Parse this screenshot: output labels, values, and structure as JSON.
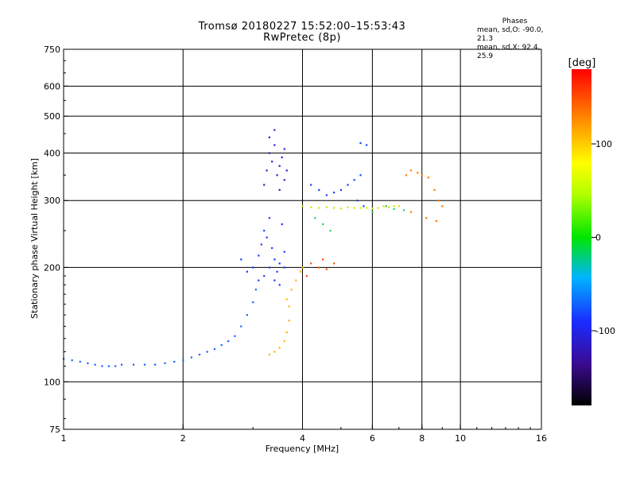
{
  "header": {
    "title_line1": "Tromsø 20180227 15:52:00–15:53:43",
    "title_line2": "RwPretec (8p)"
  },
  "phases_box": {
    "heading": "Phases",
    "line_o": "mean, sd,O: -90.0, 21.3",
    "line_x": "mean, sd,X:  92.4, 25.9"
  },
  "colorbar": {
    "unit": "[deg]",
    "ticks": [
      "100",
      "0",
      "-100"
    ]
  },
  "chart_data": {
    "type": "scatter",
    "xlabel": "Frequency [MHz]",
    "ylabel": "Stationary phase Virtual Height [km]",
    "x_scale": "log",
    "y_scale": "log",
    "xlim": [
      1,
      16
    ],
    "ylim": [
      75,
      750
    ],
    "x_ticks": [
      1,
      2,
      4,
      6,
      8,
      10,
      16
    ],
    "x_tick_labels": [
      "1",
      "2",
      "4",
      "6",
      "8",
      "10",
      "16"
    ],
    "y_ticks": [
      75,
      100,
      200,
      300,
      400,
      500,
      600,
      750
    ],
    "y_tick_labels": [
      "75",
      "100",
      "200",
      "300",
      "400",
      "500",
      "600",
      "750"
    ],
    "grid": true,
    "colorbar_range": [
      -180,
      180
    ],
    "traces": [
      {
        "color": "#1e64ff",
        "points": [
          [
            1.0,
            115
          ],
          [
            1.05,
            114
          ],
          [
            1.1,
            113
          ],
          [
            1.15,
            112
          ],
          [
            1.2,
            111
          ],
          [
            1.25,
            110
          ],
          [
            1.3,
            110
          ],
          [
            1.35,
            110
          ],
          [
            1.4,
            111
          ],
          [
            1.5,
            111
          ],
          [
            1.6,
            111
          ],
          [
            1.7,
            111
          ],
          [
            1.8,
            112
          ],
          [
            1.9,
            113
          ],
          [
            2.0,
            114
          ],
          [
            2.1,
            116
          ],
          [
            2.2,
            118
          ],
          [
            2.3,
            120
          ],
          [
            2.4,
            122
          ],
          [
            2.5,
            125
          ],
          [
            2.6,
            128
          ],
          [
            2.7,
            132
          ],
          [
            2.8,
            140
          ],
          [
            2.9,
            150
          ],
          [
            3.0,
            162
          ],
          [
            3.05,
            175
          ]
        ]
      },
      {
        "color": "#1a3cff",
        "points": [
          [
            3.0,
            200
          ],
          [
            3.1,
            215
          ],
          [
            3.15,
            230
          ],
          [
            3.2,
            250
          ],
          [
            3.25,
            240
          ],
          [
            3.3,
            270
          ],
          [
            3.35,
            225
          ],
          [
            3.4,
            210
          ],
          [
            3.45,
            195
          ],
          [
            3.5,
            205
          ],
          [
            3.55,
            260
          ],
          [
            3.6,
            220
          ],
          [
            3.1,
            185
          ],
          [
            3.2,
            190
          ],
          [
            3.3,
            200
          ],
          [
            3.4,
            185
          ],
          [
            3.5,
            180
          ],
          [
            2.9,
            195
          ],
          [
            2.8,
            210
          ],
          [
            3.6,
            200
          ]
        ]
      },
      {
        "color": "#2a1fcc",
        "points": [
          [
            3.2,
            330
          ],
          [
            3.25,
            360
          ],
          [
            3.3,
            400
          ],
          [
            3.35,
            380
          ],
          [
            3.4,
            420
          ],
          [
            3.45,
            350
          ],
          [
            3.5,
            370
          ],
          [
            3.55,
            390
          ],
          [
            3.6,
            410
          ],
          [
            3.3,
            440
          ],
          [
            3.4,
            460
          ],
          [
            3.5,
            320
          ],
          [
            3.6,
            340
          ],
          [
            3.65,
            360
          ]
        ]
      },
      {
        "color": "#ffb400",
        "points": [
          [
            3.3,
            118
          ],
          [
            3.4,
            120
          ],
          [
            3.5,
            123
          ],
          [
            3.6,
            128
          ],
          [
            3.65,
            135
          ],
          [
            3.7,
            145
          ],
          [
            3.7,
            158
          ],
          [
            3.65,
            165
          ],
          [
            3.75,
            175
          ],
          [
            3.85,
            185
          ],
          [
            3.95,
            195
          ],
          [
            4.0,
            200
          ]
        ]
      },
      {
        "color": "#d4e600",
        "points": [
          [
            4.0,
            290
          ],
          [
            4.2,
            288
          ],
          [
            4.4,
            287
          ],
          [
            4.6,
            288
          ],
          [
            4.8,
            287
          ],
          [
            5.0,
            286
          ],
          [
            5.2,
            288
          ],
          [
            5.4,
            287
          ],
          [
            5.6,
            287
          ],
          [
            5.8,
            287
          ],
          [
            6.0,
            286
          ],
          [
            6.2,
            287
          ],
          [
            6.4,
            290
          ],
          [
            6.6,
            288
          ],
          [
            6.8,
            290
          ],
          [
            7.0,
            290
          ]
        ]
      },
      {
        "color": "#1a3cff",
        "points": [
          [
            5.0,
            320
          ],
          [
            5.2,
            330
          ],
          [
            5.4,
            340
          ],
          [
            5.6,
            350
          ],
          [
            5.5,
            300
          ],
          [
            5.7,
            290
          ],
          [
            5.8,
            420
          ],
          [
            5.6,
            425
          ],
          [
            4.2,
            330
          ],
          [
            4.4,
            320
          ],
          [
            4.6,
            310
          ],
          [
            4.8,
            315
          ]
        ]
      },
      {
        "color": "#ff7800",
        "points": [
          [
            7.3,
            350
          ],
          [
            7.5,
            360
          ],
          [
            7.8,
            355
          ],
          [
            8.0,
            350
          ],
          [
            8.3,
            345
          ],
          [
            8.6,
            320
          ],
          [
            8.8,
            300
          ],
          [
            9.0,
            290
          ],
          [
            7.5,
            280
          ],
          [
            8.2,
            270
          ],
          [
            8.7,
            265
          ]
        ]
      },
      {
        "color": "#33cc66",
        "points": [
          [
            6.5,
            290
          ],
          [
            6.8,
            285
          ],
          [
            7.2,
            283
          ],
          [
            6.0,
            280
          ],
          [
            4.3,
            270
          ],
          [
            4.5,
            260
          ],
          [
            4.7,
            250
          ]
        ]
      },
      {
        "color": "#ff5000",
        "points": [
          [
            4.2,
            205
          ],
          [
            4.4,
            200
          ],
          [
            4.6,
            198
          ],
          [
            4.5,
            210
          ],
          [
            4.8,
            205
          ],
          [
            4.1,
            190
          ]
        ]
      }
    ]
  }
}
